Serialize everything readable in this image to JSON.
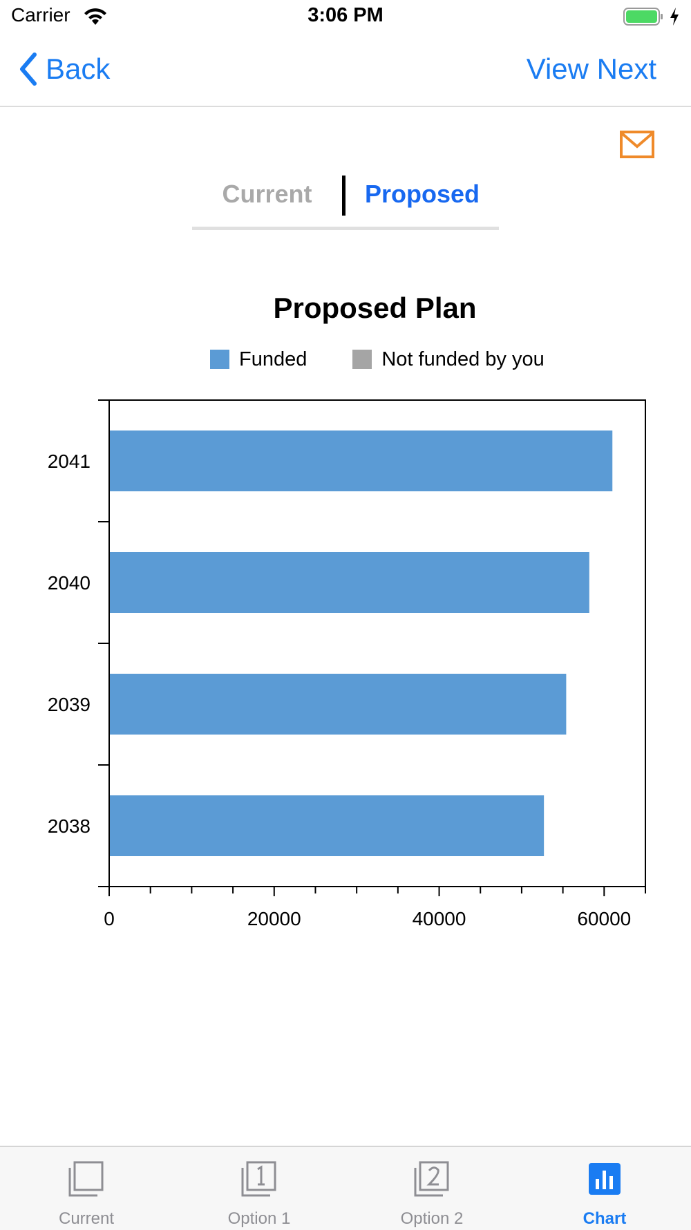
{
  "status_bar": {
    "carrier": "Carrier",
    "time": "3:06 PM"
  },
  "nav": {
    "back_label": "Back",
    "next_label": "View Next"
  },
  "segments": {
    "current_label": "Current",
    "proposed_label": "Proposed",
    "selected": "Proposed"
  },
  "colors": {
    "accent": "#1a7cf2",
    "funded": "#5b9bd5",
    "not_funded": "#a5a5a5",
    "mail": "#ef8a2a"
  },
  "chart_data": {
    "type": "bar",
    "orientation": "horizontal",
    "title": "Proposed Plan",
    "categories": [
      "2041",
      "2040",
      "2039",
      "2038"
    ],
    "series": [
      {
        "name": "Funded",
        "values": [
          61000,
          58200,
          55400,
          52700
        ]
      },
      {
        "name": "Not funded by you",
        "values": [
          0,
          0,
          0,
          0
        ]
      }
    ],
    "xlim": [
      0,
      65000
    ],
    "x_ticks": [
      "0",
      "20000",
      "40000",
      "60000"
    ],
    "legend_position": "top"
  },
  "tabs": [
    {
      "label": "Current",
      "icon": "current-icon"
    },
    {
      "label": "Option 1",
      "icon": "option1-icon"
    },
    {
      "label": "Option 2",
      "icon": "option2-icon"
    },
    {
      "label": "Chart",
      "icon": "chart-icon",
      "active": true
    }
  ]
}
